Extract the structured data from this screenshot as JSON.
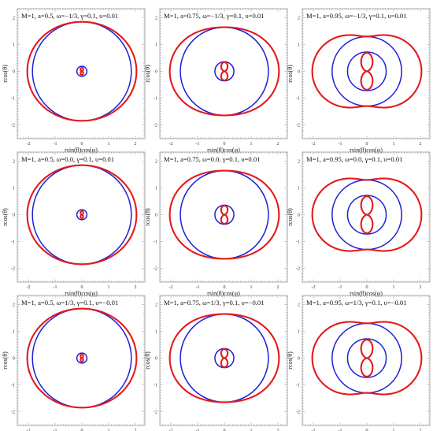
{
  "axis_labels": {
    "x": "rsin(θ)cos(φ)",
    "y": "rcos(θ)"
  },
  "x_ticks": [
    "-2",
    "-1",
    "0",
    "1",
    "2"
  ],
  "y_ticks": [
    "2",
    "1",
    "0",
    "-1",
    "-2"
  ],
  "colors": {
    "ergosurface": "#e41a1c",
    "horizon": "#1f1fd6",
    "frame": "#9a9a9a"
  },
  "panels": [
    {
      "title": "M=1, a=0.5, ω=−1/3, γ=0.1, υ=0.01",
      "a": 0.5,
      "omega": "-1/3",
      "upsilon": 0.01
    },
    {
      "title": "M=1, a=0.75, ω=−1/3, γ=0.1, υ=0.01",
      "a": 0.75,
      "omega": "-1/3",
      "upsilon": 0.01
    },
    {
      "title": "M=1, a=0.95, ω=−1/3, γ=0.1, υ=0.01",
      "a": 0.95,
      "omega": "-1/3",
      "upsilon": 0.01
    },
    {
      "title": "M=1, a=0.5, ω=0.0, γ=0.1, υ=0.01",
      "a": 0.5,
      "omega": "0.0",
      "upsilon": 0.01
    },
    {
      "title": "M=1, a=0.75, ω=0.0, γ=0.1, υ=0.01",
      "a": 0.75,
      "omega": "0.0",
      "upsilon": 0.01
    },
    {
      "title": "M=1, a=0.95, ω=0.0, γ=0.1, υ=0.01",
      "a": 0.95,
      "omega": "0.0",
      "upsilon": 0.01
    },
    {
      "title": "M=1, a=0.5, ω=1/3, γ=0.1, υ=−0.01",
      "a": 0.5,
      "omega": "1/3",
      "upsilon": -0.01
    },
    {
      "title": "M=1, a=0.75, ω=1/3, γ=0.1, υ=−0.01",
      "a": 0.75,
      "omega": "1/3",
      "upsilon": -0.01
    },
    {
      "title": "M=1, a=0.95, ω=1/3, γ=0.1, υ=−0.01",
      "a": 0.95,
      "omega": "1/3",
      "upsilon": -0.01
    }
  ]
}
